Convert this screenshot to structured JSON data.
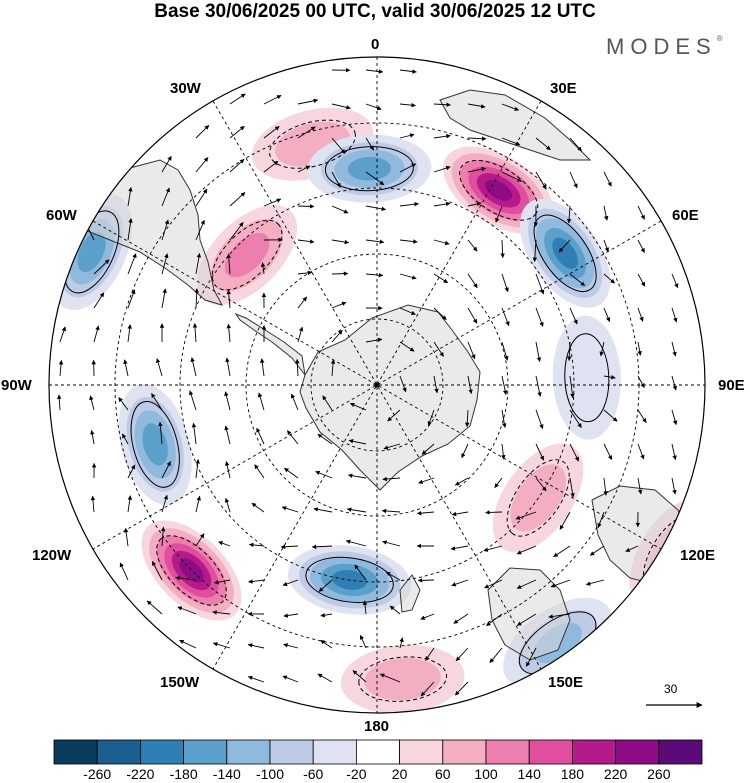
{
  "title": "Base 30/06/2025 00 UTC, valid 30/06/2025 12 UTC",
  "brand": "MODES",
  "brand_mark": "®",
  "longitude_labels": {
    "top": "0",
    "top_left": "30W",
    "top_right": "30E",
    "upper_left": "60W",
    "upper_right": "60E",
    "left": "90W",
    "right": "90E",
    "lower_left": "120W",
    "lower_right": "120E",
    "bottom_left": "150W",
    "bottom_right": "150E",
    "bottom": "180"
  },
  "reference_vector": {
    "value": "30"
  },
  "colorbar": {
    "tick_labels": [
      "-260",
      "-220",
      "-180",
      "-140",
      "-100",
      "-60",
      "-20",
      "20",
      "60",
      "100",
      "140",
      "180",
      "220",
      "260"
    ],
    "colors": [
      "#0a3a5c",
      "#1a5f8f",
      "#2f7fb4",
      "#5b9fcb",
      "#8fb9dd",
      "#bdcbe6",
      "#dfe2f1",
      "#ffffff",
      "#f8d6de",
      "#f3aec2",
      "#ec7fae",
      "#e04f9e",
      "#b51a8b",
      "#8e0b86",
      "#5a0b78"
    ]
  },
  "anomalies": [
    {
      "lon": -15,
      "lat": -52,
      "value": 90
    },
    {
      "lon": -2,
      "lat": -57,
      "value": -150
    },
    {
      "lon": 32,
      "lat": -55,
      "value": 220
    },
    {
      "lon": 55,
      "lat": -55,
      "value": -200
    },
    {
      "lon": -65,
      "lat": -42,
      "value": -150
    },
    {
      "lon": -45,
      "lat": -62,
      "value": 110
    },
    {
      "lon": -105,
      "lat": -55,
      "value": -170
    },
    {
      "lon": -135,
      "lat": -50,
      "value": 250
    },
    {
      "lon": -172,
      "lat": -60,
      "value": -180
    },
    {
      "lon": 175,
      "lat": -45,
      "value": 80
    },
    {
      "lon": 145,
      "lat": -42,
      "value": -130
    },
    {
      "lon": 120,
      "lat": -38,
      "value": 70
    },
    {
      "lon": 125,
      "lat": -60,
      "value": 90
    },
    {
      "lon": 88,
      "lat": -58,
      "value": -40
    }
  ]
}
